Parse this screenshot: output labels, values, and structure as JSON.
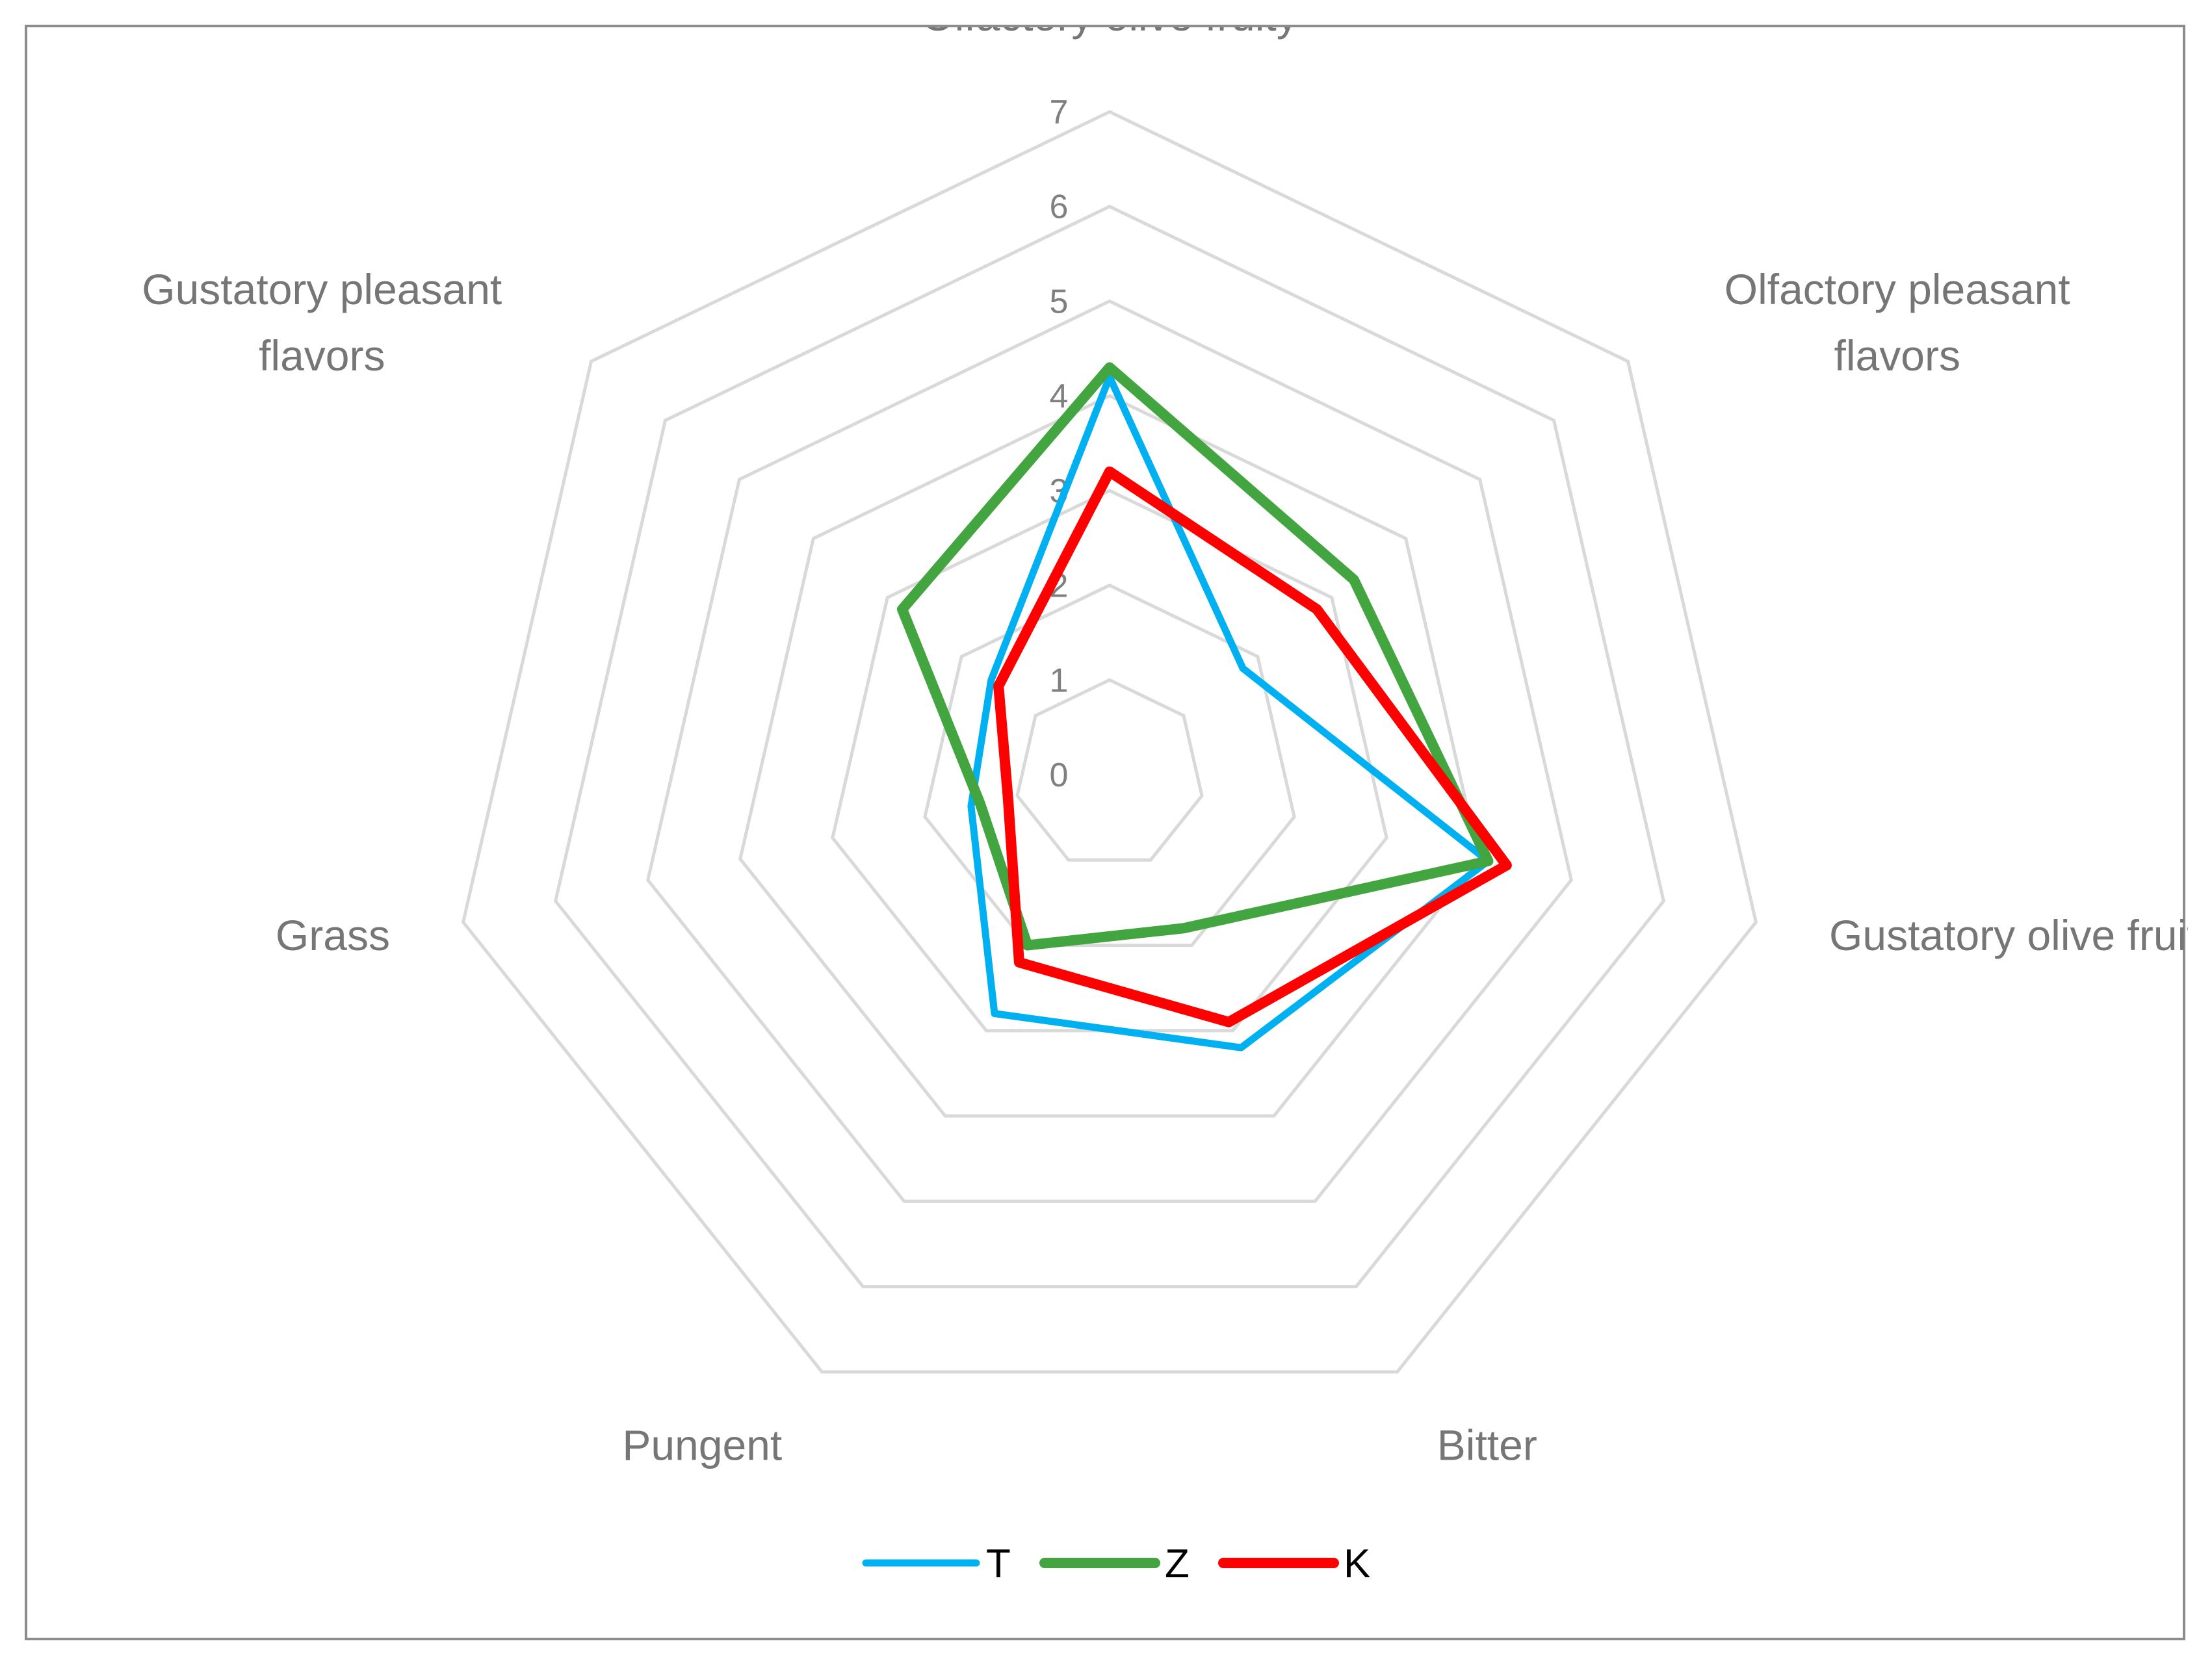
{
  "chart_data": {
    "type": "radar",
    "title": "",
    "axes": [
      "Olfactory olive fruity",
      "Olfactory pleasant flavors",
      "Gustatory olive fruity",
      "Bitter",
      "Pungent",
      "Grass",
      "Gustatory pleasant flavors"
    ],
    "axis_label_lines": [
      [
        "Olfactory olive fruity"
      ],
      [
        "Olfactory pleasant",
        "flavors"
      ],
      [
        "Gustatory olive fruity"
      ],
      [
        "Bitter"
      ],
      [
        "Pungent"
      ],
      [
        "Grass"
      ],
      [
        "Gustatory pleasant",
        "flavors"
      ]
    ],
    "ticks": [
      "0",
      "1",
      "2",
      "3",
      "4",
      "5",
      "6",
      "7"
    ],
    "range": [
      0,
      7
    ],
    "grid": true,
    "legend_position": "bottom",
    "series": [
      {
        "name": "T",
        "color": "#00b0f0",
        "values": [
          4.2,
          1.8,
          4.1,
          3.2,
          2.8,
          1.5,
          1.6
        ]
      },
      {
        "name": "Z",
        "color": "#43a53f",
        "values": [
          4.3,
          3.3,
          4.1,
          1.8,
          2.0,
          1.4,
          2.8
        ]
      },
      {
        "name": "K",
        "color": "#ff0000",
        "values": [
          3.2,
          2.8,
          4.3,
          2.9,
          2.2,
          1.1,
          1.5
        ]
      }
    ]
  }
}
